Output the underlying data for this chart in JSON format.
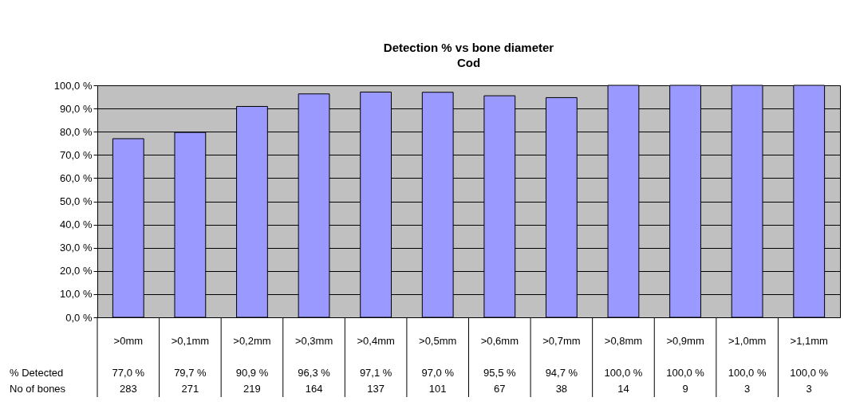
{
  "chart_data": {
    "type": "bar",
    "title": "Detection % vs bone diameter",
    "subtitle": "Cod",
    "categories": [
      ">0mm",
      ">0,1mm",
      ">0,2mm",
      ">0,3mm",
      ">0,4mm",
      ">0,5mm",
      ">0,6mm",
      ">0,7mm",
      ">0,8mm",
      ">0,9mm",
      ">1,0mm",
      ">1,1mm"
    ],
    "series": [
      {
        "name": "% Detected",
        "color": "#9999ff",
        "values": [
          77.0,
          79.7,
          90.9,
          96.3,
          97.1,
          97.0,
          95.5,
          94.7,
          100.0,
          100.0,
          100.0,
          100.0
        ],
        "value_labels": [
          "77,0 %",
          "79,7 %",
          "90,9 %",
          "96,3 %",
          "97,1 %",
          "97,0 %",
          "95,5 %",
          "94,7 %",
          "100,0 %",
          "100,0 %",
          "100,0 %",
          "100,0 %"
        ]
      }
    ],
    "annotations": [
      "No of bones",
      "283",
      "271",
      "219",
      "164",
      "137",
      "101",
      "67",
      "38",
      "14",
      "9",
      "3",
      "3"
    ],
    "ylim": [
      0,
      100
    ],
    "yticks": [
      {
        "value": 0,
        "label": "0,0 %"
      },
      {
        "value": 10,
        "label": "10,0 %"
      },
      {
        "value": 20,
        "label": "20,0 %"
      },
      {
        "value": 30,
        "label": "30,0 %"
      },
      {
        "value": 40,
        "label": "40,0 %"
      },
      {
        "value": 50,
        "label": "50,0 %"
      },
      {
        "value": 60,
        "label": "60,0 %"
      },
      {
        "value": 70,
        "label": "70,0 %"
      },
      {
        "value": 80,
        "label": "80,0 %"
      },
      {
        "value": 90,
        "label": "90,0 %"
      },
      {
        "value": 100,
        "label": "100,0 %"
      }
    ],
    "grid": true
  }
}
